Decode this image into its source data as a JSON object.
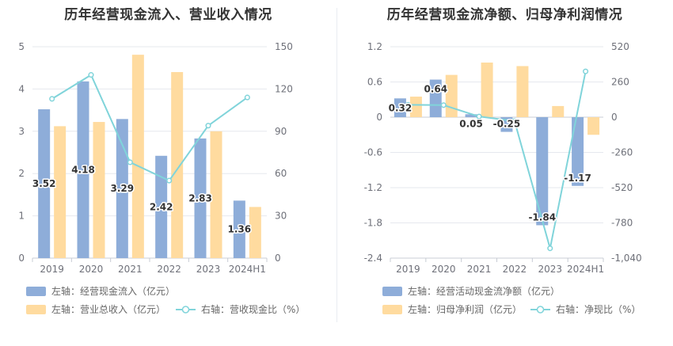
{
  "colors": {
    "bar_primary": "#8eadd9",
    "bar_secondary": "#ffdb9f",
    "line": "#80d4da",
    "grid": "#e6e8ee"
  },
  "left": {
    "title": "历年经营现金流入、营业收入情况",
    "legend": {
      "item1": "左轴：经营现金流入（亿元）",
      "item2": "左轴：营业总收入（亿元）",
      "item3": "右轴：营收现金比（%）"
    }
  },
  "right": {
    "title": "历年经营现金流净额、归母净利润情况",
    "legend": {
      "item1": "左轴：经营活动现金流净额（亿元）",
      "item2": "左轴：归母净利润（亿元）",
      "item3": "右轴：净现比（%）"
    }
  },
  "chart_data": [
    {
      "type": "bar",
      "title": "历年经营现金流入、营业收入情况",
      "categories": [
        "2019",
        "2020",
        "2021",
        "2022",
        "2023",
        "2024H1"
      ],
      "y_left": {
        "range": [
          0,
          5
        ],
        "ticks": [
          "0",
          "1",
          "2",
          "3",
          "4",
          "5"
        ],
        "tick_values": [
          0,
          1,
          2,
          3,
          4,
          5
        ]
      },
      "y_right": {
        "range": [
          0,
          150
        ],
        "ticks": [
          "0",
          "30",
          "60",
          "90",
          "120",
          "150"
        ],
        "tick_values": [
          0,
          30,
          60,
          90,
          120,
          150
        ]
      },
      "series": [
        {
          "name": "经营现金流入（亿元）",
          "type": "bar",
          "axis": "left",
          "color": "#8eadd9",
          "values": [
            3.52,
            4.18,
            3.29,
            2.42,
            2.83,
            1.36
          ],
          "labels": [
            "3.52",
            "4.18",
            "3.29",
            "2.42",
            "2.83",
            "1.36"
          ]
        },
        {
          "name": "营业总收入（亿元）",
          "type": "bar",
          "axis": "left",
          "color": "#ffdb9f",
          "values": [
            3.12,
            3.22,
            4.81,
            4.4,
            3.0,
            1.21
          ]
        },
        {
          "name": "营收现金比（%）",
          "type": "line",
          "axis": "right",
          "color": "#80d4da",
          "values": [
            113,
            130,
            68,
            55,
            94,
            114
          ]
        }
      ]
    },
    {
      "type": "bar",
      "title": "历年经营现金流净额、归母净利润情况",
      "categories": [
        "2019",
        "2020",
        "2021",
        "2022",
        "2023",
        "2024H1"
      ],
      "y_left": {
        "range": [
          -2.4,
          1.2
        ],
        "ticks": [
          "1.2",
          "0.6",
          "0",
          "-0.6",
          "-1.2",
          "-1.8",
          "-2.4"
        ],
        "tick_values": [
          1.2,
          0.6,
          0,
          -0.6,
          -1.2,
          -1.8,
          -2.4
        ]
      },
      "y_right": {
        "range": [
          -1040,
          520
        ],
        "ticks": [
          "520",
          "260",
          "0",
          "-260",
          "-520",
          "-780",
          "-1,040"
        ],
        "tick_values": [
          520,
          260,
          0,
          -260,
          -520,
          -780,
          -1040
        ]
      },
      "series": [
        {
          "name": "经营活动现金流净额（亿元）",
          "type": "bar",
          "axis": "left",
          "color": "#8eadd9",
          "values": [
            0.32,
            0.64,
            0.05,
            -0.25,
            -1.84,
            -1.17
          ],
          "labels": [
            "0.32",
            "0.64",
            "0.05",
            "-0.25",
            "-1.84",
            "-1.17"
          ]
        },
        {
          "name": "归母净利润（亿元）",
          "type": "bar",
          "axis": "left",
          "color": "#ffdb9f",
          "values": [
            0.35,
            0.72,
            0.93,
            0.87,
            0.19,
            -0.3
          ]
        },
        {
          "name": "净现比（%）",
          "type": "line",
          "axis": "right",
          "color": "#80d4da",
          "values": [
            91,
            89,
            5,
            -29,
            -968,
            338
          ]
        }
      ]
    }
  ]
}
